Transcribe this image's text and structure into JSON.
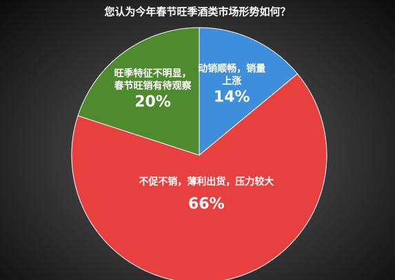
{
  "chart_data": {
    "type": "pie",
    "title": "您认为今年春节旺季酒类市场形势如何？",
    "categories": [
      "动销顺畅，销量\n上涨",
      "不促不销，薄利出货，压力较大",
      "旺季特征不明显，\n春节旺销有待观察"
    ],
    "values": [
      14,
      66,
      20
    ],
    "value_labels": [
      "14%",
      "66%",
      "20%"
    ],
    "colors": [
      "#3d8edb",
      "#e8403f",
      "#4e8a2e"
    ]
  }
}
